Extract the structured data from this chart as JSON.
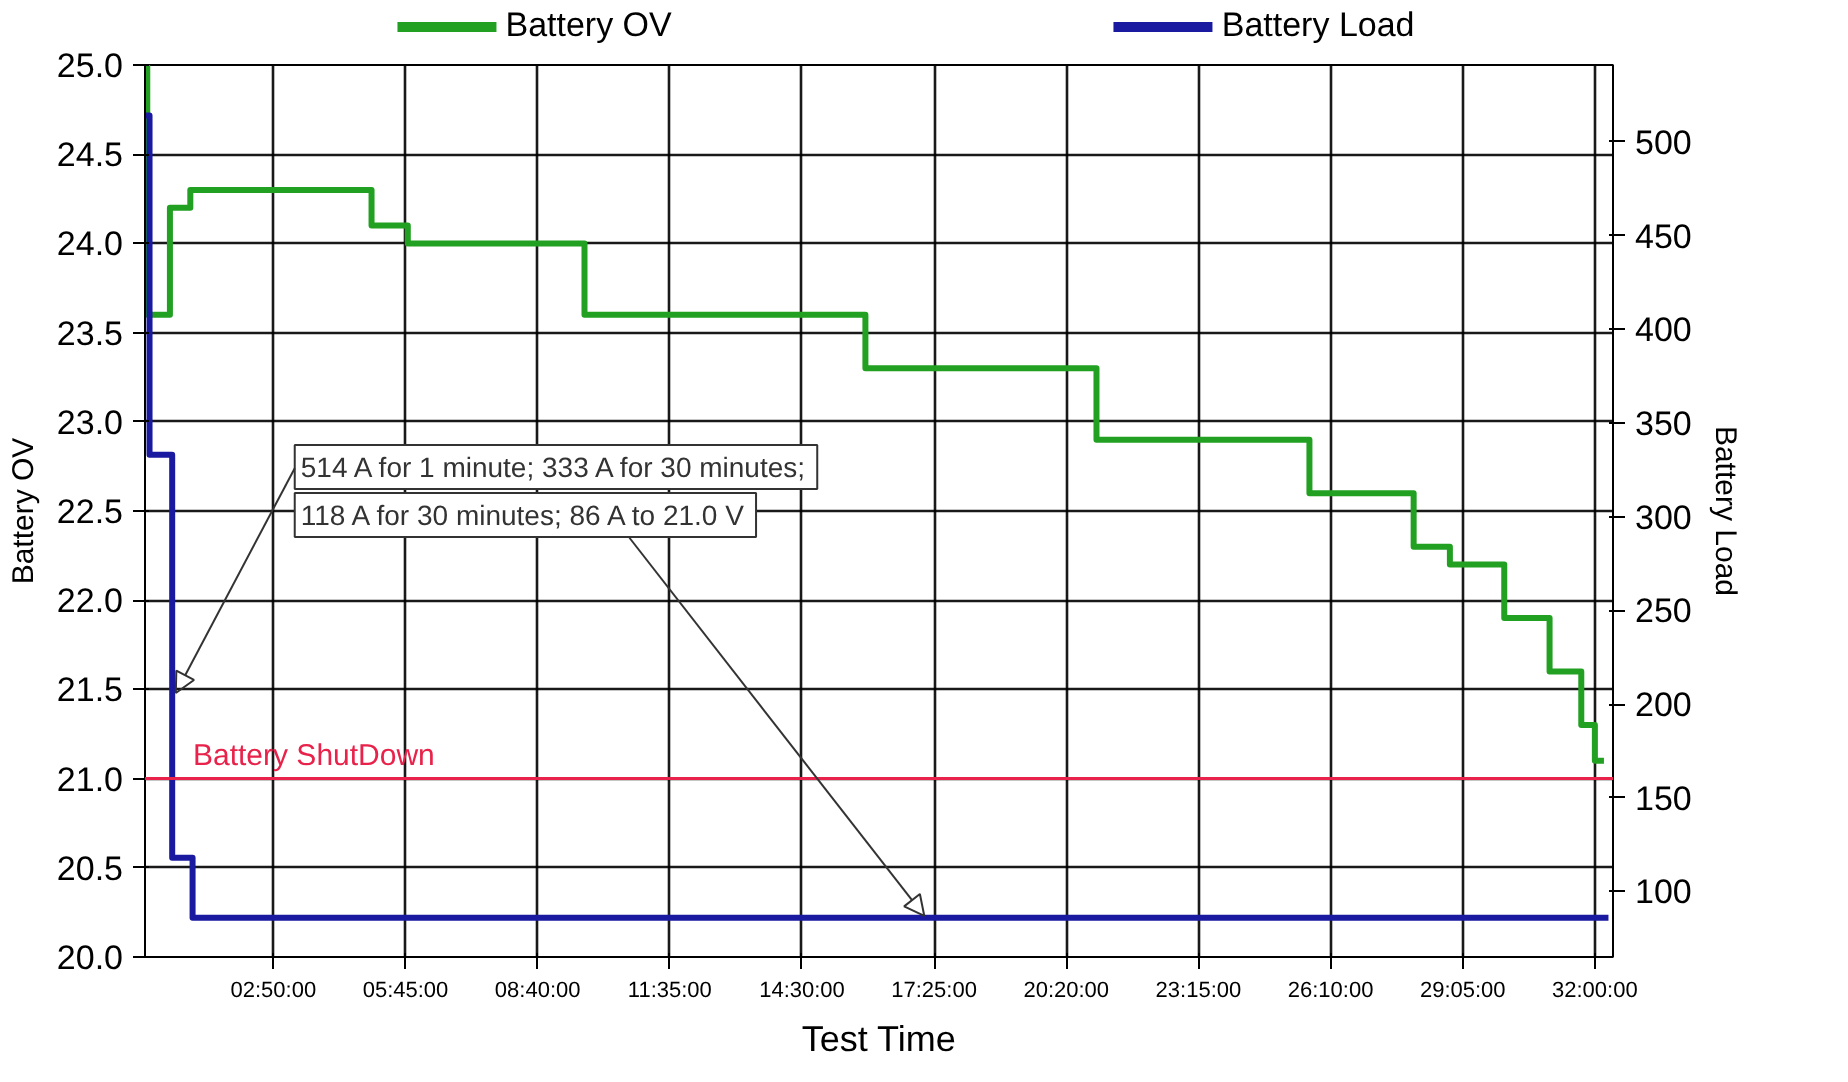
{
  "chart_data": {
    "type": "step",
    "xlabel": "Test Time",
    "ylabel": "Battery OV",
    "y2label": "Battery Load",
    "series": [
      {
        "name": "Battery OV",
        "color": "#22a022",
        "x": [
          0,
          0.05,
          0.55,
          1.0,
          5.0,
          5.8,
          9.7,
          15.9,
          21.0,
          25.7,
          28.0,
          28.8,
          30.0,
          31.0,
          31.7,
          32.0,
          32.2
        ],
        "values": [
          25.0,
          23.6,
          24.2,
          24.3,
          24.1,
          24.0,
          23.6,
          23.3,
          22.9,
          22.6,
          22.3,
          22.2,
          21.9,
          21.6,
          21.3,
          21.1,
          21.1
        ]
      },
      {
        "name": "Battery Load",
        "color": "#1a1aa0",
        "axis": "y2",
        "x": [
          0,
          0.1,
          0.6,
          1.05,
          32.3
        ],
        "values": [
          514,
          333,
          118,
          86,
          86
        ]
      }
    ],
    "xlim": [
      0,
      32.4
    ],
    "ylim": [
      20.0,
      25.0
    ],
    "y2lim": [
      65,
      541
    ],
    "xticks": [
      {
        "value": 2.8333,
        "label": "02:50:00"
      },
      {
        "value": 5.75,
        "label": "05:45:00"
      },
      {
        "value": 8.6667,
        "label": "08:40:00"
      },
      {
        "value": 11.5833,
        "label": "11:35:00"
      },
      {
        "value": 14.5,
        "label": "14:30:00"
      },
      {
        "value": 17.4167,
        "label": "17:25:00"
      },
      {
        "value": 20.3333,
        "label": "20:20:00"
      },
      {
        "value": 23.25,
        "label": "23:15:00"
      },
      {
        "value": 26.1667,
        "label": "26:10:00"
      },
      {
        "value": 29.0833,
        "label": "29:05:00"
      },
      {
        "value": 32.0,
        "label": "32:00:00"
      }
    ],
    "yticks": [
      {
        "value": 20,
        "label": "20.0"
      },
      20.5,
      {
        "value": 21,
        "label": "21.0"
      },
      21.5,
      {
        "value": 22,
        "label": "22.0"
      },
      22.5,
      {
        "value": 23,
        "label": "23.0"
      },
      23.5,
      {
        "value": 24,
        "label": "24.0"
      },
      24.5,
      {
        "value": 25,
        "label": "25.0"
      }
    ],
    "y2ticks": [
      100,
      150,
      200,
      250,
      300,
      350,
      400,
      450,
      500
    ],
    "ref_lines": [
      {
        "axis": "y",
        "value": 21.0,
        "label": "Battery ShutDown",
        "color": "#e8224a"
      }
    ],
    "annotations": [
      {
        "text": "514 A for 1 minute; 333 A for 30 minutes;",
        "x": 0.68,
        "y": 21.48
      },
      {
        "text": "118 A for 30 minutes; 86 A to 21.0 V",
        "x": 17.2,
        "y": 20.23
      }
    ],
    "grid": true,
    "legend": "top"
  }
}
